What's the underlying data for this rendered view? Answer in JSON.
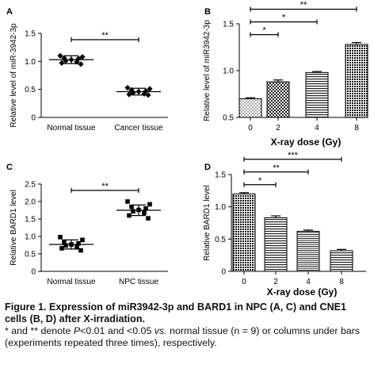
{
  "caption": {
    "title": "Figure 1. Expression of miR3942-3p and BARD1 in NPC (A, C) and CNE1 cells (B, D) after X-irradiation.",
    "note_a": "* and ** denote ",
    "note_p": "P",
    "note_b": "<0.01 and <0.05 ",
    "note_vs": "vs.",
    "note_c": " normal tissue (n = 9) or columns under bars (experiments repeated three times), respectively."
  },
  "chart_data": [
    {
      "panel": "A",
      "type": "scatter",
      "ylabel": "Relative level of miR-3942-3p",
      "ylim": [
        0,
        1.5
      ],
      "yticks": [
        "0",
        "0.5",
        "1.0",
        "1.5"
      ],
      "categories": [
        "Normal tissue",
        "Cancer tissue"
      ],
      "marker": "diamond",
      "groups": [
        {
          "category": "Normal tissue",
          "mean": 1.03,
          "sd": 0.07,
          "values": [
            1.1,
            1.08,
            1.06,
            1.05,
            1.03,
            1.01,
            0.99,
            0.97,
            0.95
          ]
        },
        {
          "category": "Cancer tissue",
          "mean": 0.46,
          "sd": 0.06,
          "values": [
            0.53,
            0.51,
            0.49,
            0.47,
            0.46,
            0.44,
            0.42,
            0.41,
            0.4
          ]
        }
      ],
      "significance": [
        {
          "pair": [
            0,
            1
          ],
          "label": "**"
        }
      ]
    },
    {
      "panel": "B",
      "type": "bar",
      "ylabel": "Relative level of miR3942-3p",
      "xlabel": "X-ray dose (Gy)",
      "ylim": [
        0.5,
        1.5
      ],
      "yticks": [
        "0.5",
        "1.0",
        "1.5"
      ],
      "categories": [
        "0",
        "2",
        "4",
        "8"
      ],
      "values": [
        0.7,
        0.88,
        0.98,
        1.28
      ],
      "errors": [
        0.01,
        0.02,
        0.01,
        0.02
      ],
      "significance": [
        {
          "pair": [
            0,
            1
          ],
          "label": "*"
        },
        {
          "pair": [
            0,
            2
          ],
          "label": "*"
        },
        {
          "pair": [
            0,
            3
          ],
          "label": "**"
        }
      ]
    },
    {
      "panel": "C",
      "type": "scatter",
      "ylabel": "Relative BARD1 level",
      "ylim": [
        0,
        2.5
      ],
      "yticks": [
        "0",
        "0.5",
        "1.0",
        "1.5",
        "2.0",
        "2.5"
      ],
      "categories": [
        "Normal tissue",
        "NPC tissue"
      ],
      "marker": "square",
      "groups": [
        {
          "category": "Normal tissue",
          "mean": 0.77,
          "sd": 0.13,
          "values": [
            0.98,
            0.9,
            0.85,
            0.8,
            0.77,
            0.74,
            0.7,
            0.66,
            0.6
          ]
        },
        {
          "category": "NPC tissue",
          "mean": 1.75,
          "sd": 0.15,
          "values": [
            2.0,
            1.92,
            1.85,
            1.8,
            1.76,
            1.72,
            1.68,
            1.6,
            1.52
          ]
        }
      ],
      "significance": [
        {
          "pair": [
            0,
            1
          ],
          "label": "**"
        }
      ]
    },
    {
      "panel": "D",
      "type": "bar",
      "ylabel": "Relative BARD1 level",
      "xlabel": "X-ray dose (Gy)",
      "ylim": [
        0,
        1.5
      ],
      "yticks": [
        "0",
        "0.5",
        "1.0",
        "1.5"
      ],
      "categories": [
        "0",
        "2",
        "4",
        "8"
      ],
      "values": [
        1.2,
        0.83,
        0.62,
        0.32
      ],
      "errors": [
        0.02,
        0.03,
        0.02,
        0.02
      ],
      "significance": [
        {
          "pair": [
            0,
            1
          ],
          "label": "*"
        },
        {
          "pair": [
            0,
            2
          ],
          "label": "**"
        },
        {
          "pair": [
            0,
            3
          ],
          "label": "***"
        }
      ]
    }
  ]
}
